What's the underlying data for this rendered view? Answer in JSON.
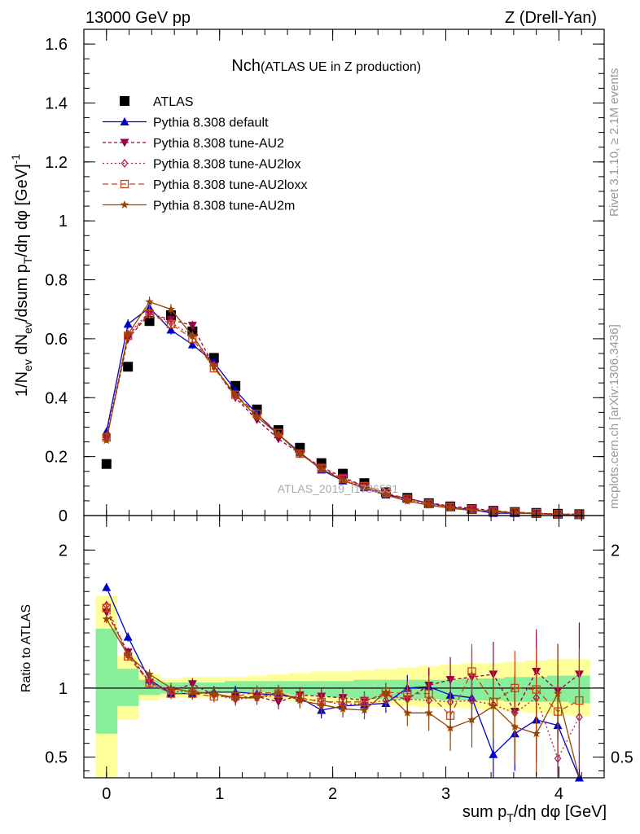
{
  "header": {
    "left": "13000 GeV pp",
    "right": "Z (Drell-Yan)"
  },
  "side": {
    "rivet": "Rivet 3.1.10, ≥ 2.1M events",
    "mcplots": "mcplots.cern.ch [arXiv:1306.3436]"
  },
  "chart_data": [
    {
      "type": "line",
      "title": "Nch",
      "subtitle": "(ATLAS UE in Z production)",
      "watermark": "ATLAS_2019_I1736531",
      "xlabel": "sum p_T/dη dφ [GeV]",
      "ylabel": "1/N_ev dN_ev/dsum p_T/dη dφ [GeV]^-1",
      "xlim": [
        -0.2,
        4.4
      ],
      "ylim": [
        0,
        1.65
      ],
      "grid": false,
      "legend_position": "top-left",
      "x": [
        0.0,
        0.19,
        0.38,
        0.57,
        0.76,
        0.95,
        1.14,
        1.33,
        1.52,
        1.71,
        1.9,
        2.09,
        2.28,
        2.47,
        2.66,
        2.85,
        3.04,
        3.23,
        3.42,
        3.61,
        3.8,
        3.99,
        4.18
      ],
      "series": [
        {
          "name": "ATLAS",
          "color": "#000000",
          "marker": "square",
          "dash": "none",
          "values": [
            0.175,
            0.505,
            0.66,
            0.68,
            0.625,
            0.535,
            0.44,
            0.36,
            0.29,
            0.23,
            0.178,
            0.142,
            0.11,
            0.079,
            0.06,
            0.042,
            0.031,
            0.022,
            0.016,
            0.012,
            0.009,
            0.006,
            0.0045
          ]
        },
        {
          "name": "Pythia 8.308 default",
          "color": "#0000cc",
          "marker": "triangle-up",
          "dash": "none",
          "values": [
            0.285,
            0.65,
            0.705,
            0.63,
            0.58,
            0.52,
            0.425,
            0.345,
            0.275,
            0.215,
            0.155,
            0.118,
            0.095,
            0.07,
            0.058,
            0.042,
            0.029,
            0.02,
            0.008,
            0.008,
            0.007,
            0.004,
            0.0015
          ]
        },
        {
          "name": "Pythia 8.308 tune-AU2",
          "color": "#990044",
          "marker": "triangle-down",
          "dash": "4,3",
          "values": [
            0.26,
            0.6,
            0.685,
            0.665,
            0.645,
            0.505,
            0.4,
            0.325,
            0.26,
            0.21,
            0.165,
            0.13,
            0.1,
            0.075,
            0.055,
            0.043,
            0.032,
            0.024,
            0.017,
            0.01,
            0.008,
            0.005,
            0.005
          ]
        },
        {
          "name": "Pythia 8.308 tune-AU2lox",
          "color": "#aa2255",
          "marker": "diamond-open",
          "dash": "2,3",
          "values": [
            0.27,
            0.615,
            0.69,
            0.655,
            0.61,
            0.51,
            0.405,
            0.335,
            0.275,
            0.21,
            0.16,
            0.125,
            0.097,
            0.072,
            0.053,
            0.038,
            0.028,
            0.02,
            0.014,
            0.01,
            0.0085,
            0.003,
            0.0035
          ]
        },
        {
          "name": "Pythia 8.308 tune-AU2loxx",
          "color": "#cc4411",
          "marker": "square-open",
          "dash": "7,4",
          "values": [
            0.265,
            0.61,
            0.685,
            0.65,
            0.6,
            0.5,
            0.41,
            0.345,
            0.28,
            0.21,
            0.16,
            0.125,
            0.1,
            0.077,
            0.057,
            0.04,
            0.029,
            0.021,
            0.0145,
            0.012,
            0.0085,
            0.005,
            0.0041
          ]
        },
        {
          "name": "Pythia 8.308 tune-AU2m",
          "color": "#994400",
          "marker": "star",
          "dash": "none",
          "values": [
            0.255,
            0.615,
            0.725,
            0.7,
            0.61,
            0.505,
            0.41,
            0.335,
            0.275,
            0.21,
            0.158,
            0.12,
            0.092,
            0.07,
            0.049,
            0.035,
            0.025,
            0.017,
            0.014,
            0.009,
            0.006,
            0.004,
            0.0015
          ]
        }
      ],
      "yticks": [
        0,
        0.2,
        0.4,
        0.6,
        0.8,
        1,
        1.2,
        1.4,
        1.6
      ]
    },
    {
      "type": "line",
      "ylabel": "Ratio to ATLAS",
      "xlabel": "sum p_T/dη dφ [GeV]",
      "xlim": [
        -0.2,
        4.4
      ],
      "ylim": [
        0.35,
        2.25
      ],
      "reference_line": 1,
      "band_inner": {
        "color": "#88ee99",
        "lo": [
          0.67,
          0.87,
          0.95,
          0.96,
          0.96,
          0.97,
          0.97,
          0.97,
          0.96,
          0.95,
          0.94,
          0.93,
          0.92,
          0.92,
          0.92,
          0.92,
          0.91,
          0.91,
          0.91,
          0.9,
          0.9,
          0.9,
          0.89
        ],
        "hi": [
          1.43,
          1.14,
          1.06,
          1.04,
          1.04,
          1.04,
          1.05,
          1.05,
          1.05,
          1.05,
          1.05,
          1.05,
          1.06,
          1.06,
          1.06,
          1.06,
          1.06,
          1.07,
          1.07,
          1.08,
          1.08,
          1.09,
          1.09
        ]
      },
      "band_outer": {
        "color": "#ffff99",
        "lo": [
          0.35,
          0.77,
          0.91,
          0.93,
          0.93,
          0.93,
          0.93,
          0.92,
          0.91,
          0.9,
          0.9,
          0.89,
          0.88,
          0.88,
          0.87,
          0.86,
          0.86,
          0.85,
          0.84,
          0.83,
          0.82,
          0.81,
          0.8
        ],
        "hi": [
          1.67,
          1.23,
          1.1,
          1.07,
          1.08,
          1.08,
          1.08,
          1.09,
          1.1,
          1.11,
          1.12,
          1.12,
          1.13,
          1.14,
          1.15,
          1.16,
          1.17,
          1.18,
          1.18,
          1.19,
          1.2,
          1.21,
          1.21
        ]
      },
      "series": [
        {
          "name": "Pythia 8.308 default",
          "color": "#0000cc",
          "marker": "triangle-up",
          "dash": "none",
          "values": [
            1.73,
            1.37,
            1.06,
            0.96,
            0.96,
            0.97,
            0.97,
            0.96,
            0.95,
            0.93,
            0.84,
            0.87,
            0.88,
            0.89,
            1.0,
            1.01,
            0.95,
            0.93,
            0.52,
            0.67,
            0.77,
            0.73,
            0.35
          ]
        },
        {
          "name": "Pythia 8.308 tune-AU2",
          "color": "#990044",
          "marker": "triangle-down",
          "dash": "4,3",
          "values": [
            1.55,
            1.26,
            1.04,
            0.98,
            1.03,
            0.95,
            0.93,
            0.94,
            0.9,
            0.95,
            0.94,
            0.93,
            0.91,
            0.95,
            0.92,
            1.02,
            1.06,
            1.08,
            1.1,
            0.83,
            1.12,
            0.98,
            1.1
          ]
        },
        {
          "name": "Pythia 8.308 tune-AU2lox",
          "color": "#aa2255",
          "marker": "diamond-open",
          "dash": "2,3",
          "values": [
            1.6,
            1.24,
            1.05,
            0.97,
            0.98,
            0.95,
            0.92,
            0.93,
            0.95,
            0.92,
            0.91,
            0.88,
            0.89,
            0.91,
            0.92,
            0.91,
            0.9,
            0.91,
            0.88,
            0.82,
            0.93,
            0.49,
            0.79
          ]
        },
        {
          "name": "Pythia 8.308 tune-AU2loxx",
          "color": "#cc4411",
          "marker": "square-open",
          "dash": "7,4",
          "values": [
            1.58,
            1.23,
            1.04,
            0.96,
            0.96,
            0.94,
            0.94,
            0.97,
            0.96,
            0.93,
            0.9,
            0.9,
            0.9,
            0.97,
            0.96,
            0.96,
            0.8,
            1.12,
            0.9,
            1.0,
            0.99,
            0.83,
            0.91
          ]
        },
        {
          "name": "Pythia 8.308 tune-AU2m",
          "color": "#994400",
          "marker": "star",
          "dash": "none",
          "values": [
            1.5,
            1.24,
            1.1,
            1.0,
            0.97,
            0.96,
            0.93,
            0.93,
            0.97,
            0.91,
            0.88,
            0.85,
            0.84,
            0.97,
            0.82,
            0.82,
            0.71,
            0.77,
            0.87,
            0.72,
            0.67,
            0.96,
            0.32
          ]
        }
      ],
      "yticks": [
        0.5,
        1,
        2
      ],
      "xticks": [
        0,
        1,
        2,
        3,
        4
      ]
    }
  ]
}
